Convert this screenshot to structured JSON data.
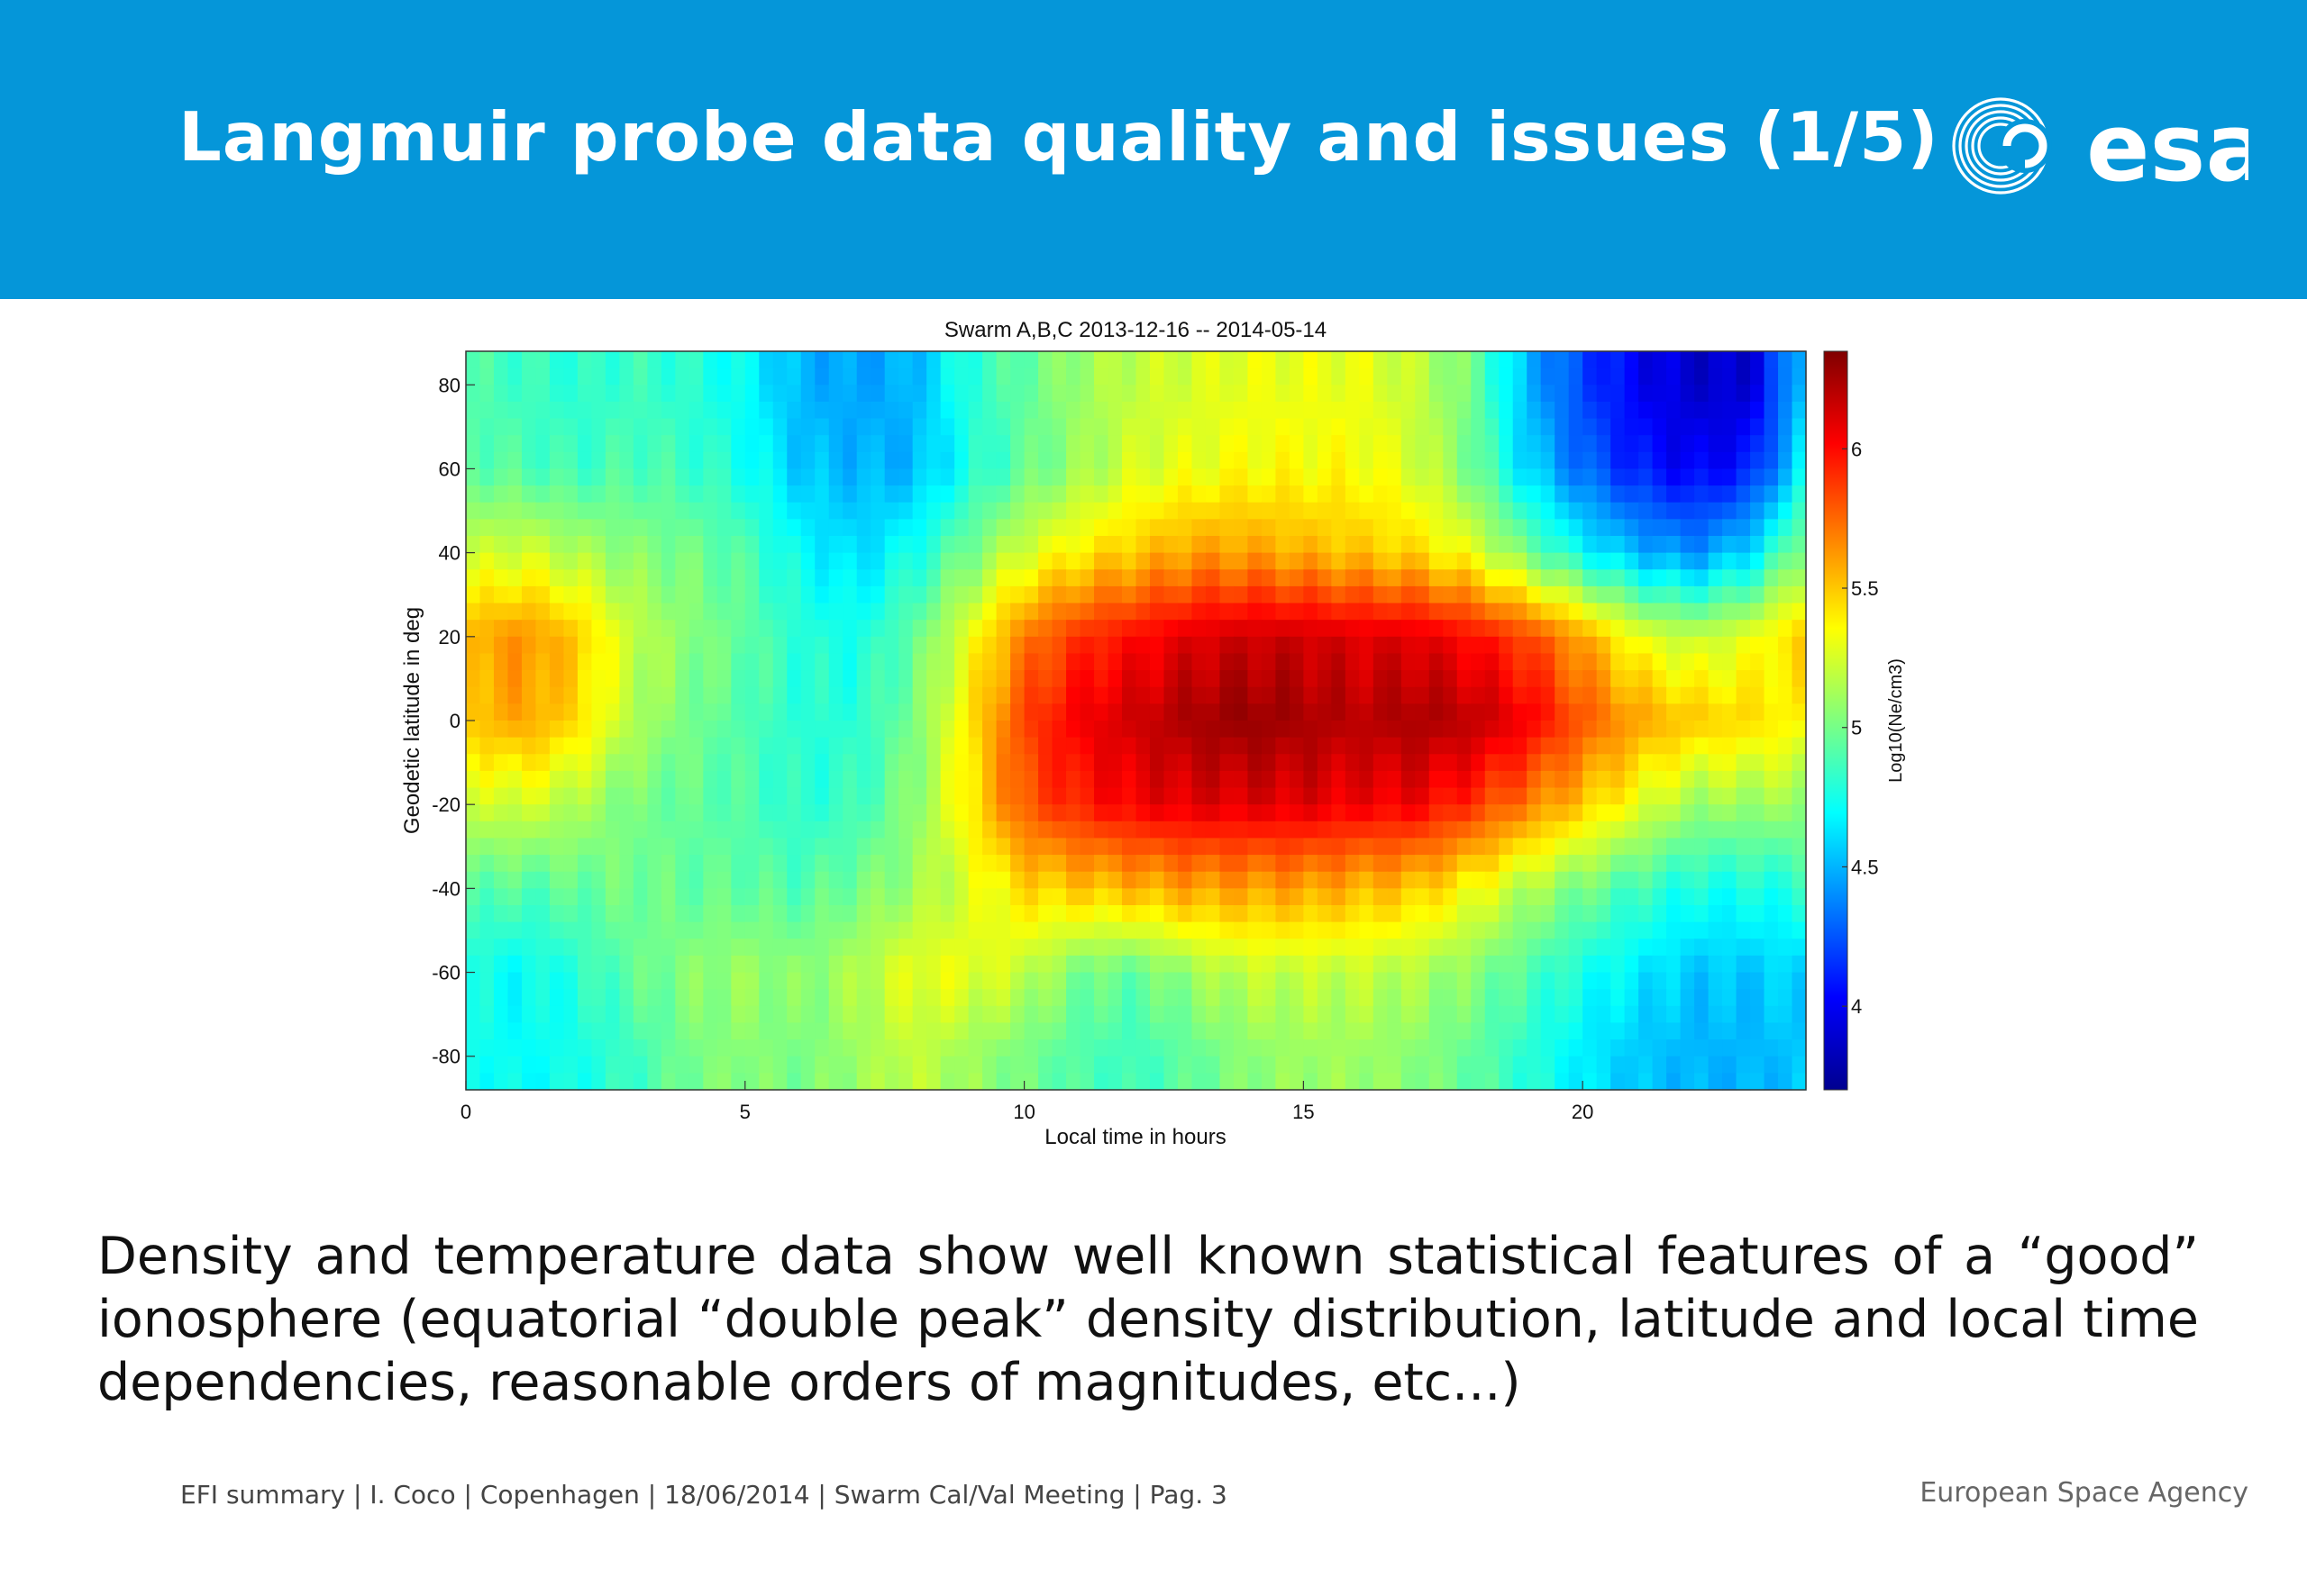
{
  "slide": {
    "title": "Langmuir probe data quality and issues (1/5)",
    "logo_text": "esa",
    "body": "Density and temperature data show well known statistical features of a “good” ionosphere (equatorial “double peak” density distribution, latitude and local time dependencies, reasonable orders of magnitudes, etc...)",
    "footer": "EFI summary | I. Coco | Copenhagen | 18/06/2014 | Swarm Cal/Val Meeting | Pag. 3",
    "footer_org": "European Space Agency",
    "colors": {
      "header_bg": "#0596d9",
      "title_text": "#ffffff"
    }
  },
  "chart_data": {
    "type": "heatmap",
    "title": "Swarm A,B,C 2013-12-16 -- 2014-05-14",
    "xlabel": "Local time in hours",
    "ylabel": "Geodetic latitude in deg",
    "colorbar_label": "Log10(Ne/cm3)",
    "colormap": "jet",
    "xlim": [
      0,
      24
    ],
    "ylim": [
      -88,
      88
    ],
    "clim": [
      3.7,
      6.35
    ],
    "xticks": [
      "0",
      "5",
      "10",
      "15",
      "20"
    ],
    "xtick_values": [
      0,
      5,
      10,
      15,
      20
    ],
    "yticks": [
      "80",
      "60",
      "40",
      "20",
      "0",
      "-20",
      "-40",
      "-60",
      "-80"
    ],
    "ytick_values": [
      80,
      60,
      40,
      20,
      0,
      -20,
      -40,
      -60,
      -80
    ],
    "colorbar_ticks": [
      "6",
      "5.5",
      "5",
      "4.5",
      "4"
    ],
    "colorbar_tick_values": [
      6,
      5.5,
      5,
      4.5,
      4
    ],
    "x": [
      0,
      1,
      2,
      3,
      4,
      5,
      6,
      7,
      8,
      9,
      10,
      11,
      12,
      13,
      14,
      15,
      16,
      17,
      18,
      19,
      20,
      21,
      22,
      23,
      24
    ],
    "y": [
      80,
      60,
      40,
      20,
      0,
      -20,
      -40,
      -60,
      -80
    ],
    "z": [
      [
        4.9,
        4.85,
        4.8,
        4.85,
        4.8,
        4.7,
        4.5,
        4.45,
        4.5,
        4.8,
        4.95,
        5.1,
        5.2,
        5.25,
        5.3,
        5.3,
        5.3,
        5.2,
        5.0,
        4.5,
        4.2,
        4.0,
        3.9,
        3.9,
        4.6
      ],
      [
        4.95,
        4.9,
        4.85,
        4.9,
        4.85,
        4.75,
        4.55,
        4.5,
        4.5,
        4.75,
        4.95,
        5.1,
        5.25,
        5.3,
        5.35,
        5.35,
        5.35,
        5.25,
        5.0,
        4.6,
        4.3,
        4.1,
        4.0,
        4.1,
        4.7
      ],
      [
        5.2,
        5.25,
        5.15,
        5.05,
        5.0,
        4.9,
        4.7,
        4.6,
        4.75,
        5.0,
        5.25,
        5.4,
        5.5,
        5.6,
        5.6,
        5.55,
        5.5,
        5.45,
        5.3,
        5.0,
        4.7,
        4.5,
        4.4,
        4.6,
        5.1
      ],
      [
        5.55,
        5.65,
        5.5,
        5.2,
        5.05,
        4.95,
        4.8,
        4.75,
        4.95,
        5.3,
        5.7,
        5.9,
        6.0,
        6.1,
        6.15,
        6.15,
        6.1,
        6.1,
        6.0,
        5.85,
        5.6,
        5.3,
        5.2,
        5.3,
        5.5
      ],
      [
        5.5,
        5.6,
        5.45,
        5.15,
        5.0,
        4.9,
        4.8,
        4.8,
        5.0,
        5.4,
        5.85,
        6.05,
        6.15,
        6.25,
        6.3,
        6.25,
        6.2,
        6.25,
        6.2,
        6.05,
        5.8,
        5.6,
        5.5,
        5.45,
        5.35
      ],
      [
        5.2,
        5.25,
        5.15,
        5.0,
        4.95,
        4.9,
        4.8,
        4.85,
        5.05,
        5.4,
        5.8,
        5.95,
        6.05,
        6.1,
        6.1,
        6.1,
        6.05,
        6.05,
        5.9,
        5.7,
        5.5,
        5.3,
        5.1,
        5.1,
        5.1
      ],
      [
        4.95,
        4.9,
        4.95,
        5.0,
        4.95,
        4.95,
        4.9,
        5.0,
        5.1,
        5.25,
        5.45,
        5.5,
        5.55,
        5.6,
        5.6,
        5.6,
        5.55,
        5.5,
        5.35,
        5.15,
        5.0,
        4.85,
        4.75,
        4.75,
        4.8
      ],
      [
        4.75,
        4.7,
        4.8,
        4.95,
        5.05,
        5.1,
        5.05,
        5.15,
        5.3,
        5.3,
        5.2,
        5.0,
        4.95,
        5.1,
        5.2,
        5.2,
        5.2,
        5.15,
        5.05,
        4.9,
        4.75,
        4.65,
        4.55,
        4.55,
        4.6
      ],
      [
        4.75,
        4.7,
        4.75,
        4.85,
        5.0,
        5.05,
        5.0,
        5.1,
        5.2,
        5.1,
        5.0,
        4.9,
        4.85,
        4.95,
        5.05,
        5.1,
        5.1,
        5.05,
        4.95,
        4.8,
        4.65,
        4.55,
        4.5,
        4.5,
        4.55
      ]
    ]
  }
}
